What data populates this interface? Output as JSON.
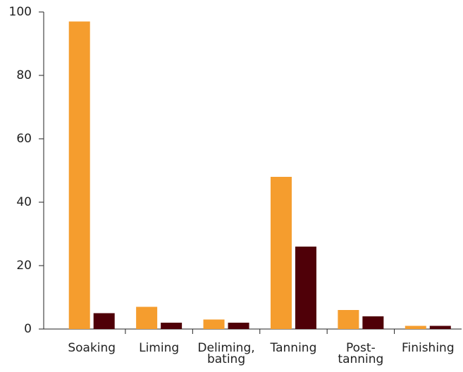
{
  "chart_data": {
    "type": "bar",
    "categories": [
      "Soaking",
      "Liming",
      "Deliming,\nbating",
      "Tanning",
      "Post-\ntanning",
      "Finishing"
    ],
    "series": [
      {
        "color": "#f59d2e",
        "values": [
          97,
          7,
          3,
          48,
          6,
          1
        ]
      },
      {
        "color": "#4f0008",
        "values": [
          5,
          2,
          2,
          26,
          4,
          1
        ]
      }
    ],
    "ylim": [
      0,
      100
    ],
    "yticks": [
      0,
      20,
      40,
      60,
      80,
      100
    ],
    "grid": false
  }
}
